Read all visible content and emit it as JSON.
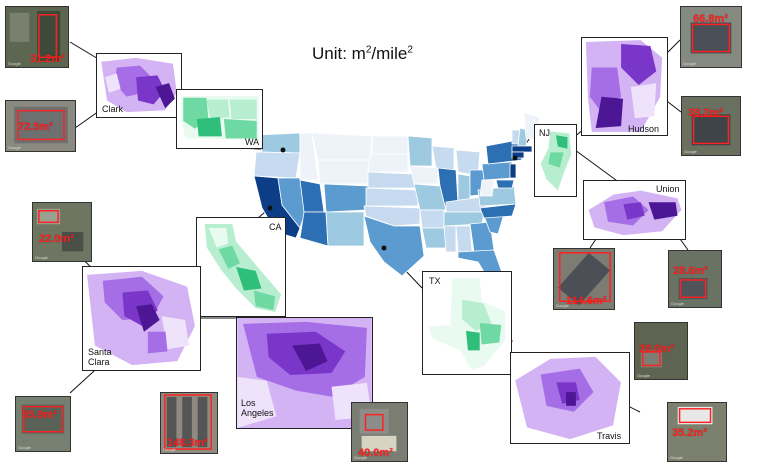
{
  "unit_title": {
    "prefix": "Unit: m",
    "mid": "/mile",
    "exp": "2"
  },
  "colors": {
    "state_scale": [
      "#eef3fa",
      "#c6dbef",
      "#9ecae1",
      "#5b9bd0",
      "#2d6fb3",
      "#0b3e87"
    ],
    "county_green": [
      "#e9faf1",
      "#b7eed0",
      "#6fd9a3",
      "#2fbf7a"
    ],
    "tract_purple": [
      "#efe2fb",
      "#d3b3f3",
      "#a56ee6",
      "#7a35c9",
      "#4d1694"
    ],
    "leader_line": "#111111",
    "area_label": "#ff2020"
  },
  "panels": {
    "clark": "Clark",
    "wa": "WA",
    "ca": "CA",
    "santa_clara": "Santa\nClara",
    "los_angeles": "Los\nAngeles",
    "tx": "TX",
    "travis": "Travis",
    "nj": "NJ",
    "hudson": "Hudson",
    "union": "Union"
  },
  "satellite": {
    "clark_1": "31.2m²",
    "clark_2": "72.5m²",
    "santa_clara_1": "22.0m²",
    "santa_clara_2": "55.9m²",
    "los_angeles_1": "148.3m²",
    "los_angeles_2": "40.0m²",
    "hudson_1": "66.8m²",
    "hudson_2": "39.2m²",
    "union_1": "114.6m²",
    "union_2": "28.6m²",
    "travis_1": "20.0m²",
    "travis_2": "35.2m²",
    "imagery_credit": "Google"
  },
  "us_states": [
    {
      "name": "WA",
      "level": 2
    },
    {
      "name": "OR",
      "level": 1
    },
    {
      "name": "CA",
      "level": 5
    },
    {
      "name": "NV",
      "level": 3
    },
    {
      "name": "ID",
      "level": 0
    },
    {
      "name": "MT",
      "level": 0
    },
    {
      "name": "WY",
      "level": 0
    },
    {
      "name": "UT",
      "level": 4
    },
    {
      "name": "AZ",
      "level": 4
    },
    {
      "name": "CO",
      "level": 3
    },
    {
      "name": "NM",
      "level": 2
    },
    {
      "name": "ND",
      "level": 0
    },
    {
      "name": "SD",
      "level": 0
    },
    {
      "name": "NE",
      "level": 1
    },
    {
      "name": "KS",
      "level": 1
    },
    {
      "name": "OK",
      "level": 1
    },
    {
      "name": "TX",
      "level": 3
    },
    {
      "name": "MN",
      "level": 2
    },
    {
      "name": "IA",
      "level": 0
    },
    {
      "name": "MO",
      "level": 2
    },
    {
      "name": "AR",
      "level": 1
    },
    {
      "name": "LA",
      "level": 2
    },
    {
      "name": "WI",
      "level": 1
    },
    {
      "name": "IL",
      "level": 4
    },
    {
      "name": "MI",
      "level": 1
    },
    {
      "name": "IN",
      "level": 2
    },
    {
      "name": "OH",
      "level": 3
    },
    {
      "name": "KY",
      "level": 1
    },
    {
      "name": "TN",
      "level": 2
    },
    {
      "name": "MS",
      "level": 1
    },
    {
      "name": "AL",
      "level": 1
    },
    {
      "name": "GA",
      "level": 3
    },
    {
      "name": "FL",
      "level": 3
    },
    {
      "name": "SC",
      "level": 3
    },
    {
      "name": "NC",
      "level": 4
    },
    {
      "name": "VA",
      "level": 2
    },
    {
      "name": "WV",
      "level": 0
    },
    {
      "name": "PA",
      "level": 3
    },
    {
      "name": "NY",
      "level": 4
    },
    {
      "name": "VT",
      "level": 1
    },
    {
      "name": "NH",
      "level": 2
    },
    {
      "name": "ME",
      "level": 0
    },
    {
      "name": "MA",
      "level": 5
    },
    {
      "name": "NJ",
      "level": 5
    },
    {
      "name": "MD",
      "level": 4
    },
    {
      "name": "CT",
      "level": 5
    }
  ]
}
